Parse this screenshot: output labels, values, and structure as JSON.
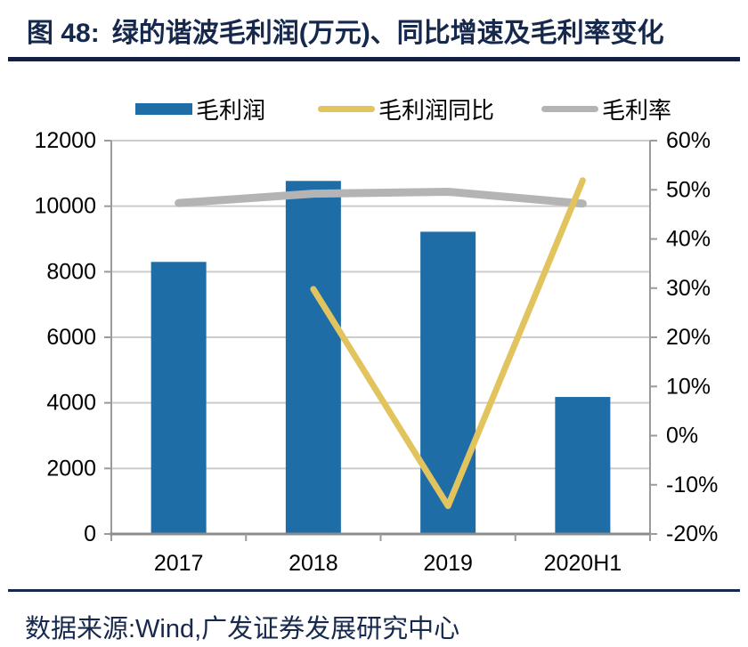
{
  "header": {
    "figure_label": "图 48:",
    "title": "绿的谐波毛利润(万元)、同比增速及毛利率变化"
  },
  "legend": {
    "items": [
      {
        "label": "毛利润",
        "marker": "bar",
        "color": "#1F6DA6"
      },
      {
        "label": "毛利润同比",
        "marker": "line",
        "color": "#E2C45F"
      },
      {
        "label": "毛利率",
        "marker": "line",
        "color": "#B4B4B4"
      }
    ]
  },
  "chart_data": {
    "type": "combo",
    "categories": [
      "2017",
      "2018",
      "2019",
      "2020H1"
    ],
    "series": [
      {
        "name": "毛利润",
        "type": "bar",
        "axis": "left",
        "color": "#1F6DA6",
        "values": [
          8300,
          10770,
          9220,
          4180
        ]
      },
      {
        "name": "毛利润同比",
        "type": "line",
        "axis": "right",
        "color": "#E2C45F",
        "values": [
          null,
          29.8,
          -14.3,
          51.9
        ]
      },
      {
        "name": "毛利率",
        "type": "line",
        "axis": "right",
        "color": "#B4B4B4",
        "values": [
          47.3,
          49.2,
          49.6,
          47.2
        ]
      }
    ],
    "left_axis": {
      "min": 0,
      "max": 12000,
      "tick_step": 2000,
      "tick_labels": [
        "0",
        "2000",
        "4000",
        "6000",
        "8000",
        "10000",
        "12000"
      ]
    },
    "right_axis": {
      "min": -20,
      "max": 60,
      "tick_step": 10,
      "tick_labels": [
        "-20%",
        "-10%",
        "0%",
        "10%",
        "20%",
        "30%",
        "40%",
        "50%",
        "60%"
      ]
    },
    "grid": "horizontal",
    "legend_position": "top"
  },
  "footer": {
    "source": "数据来源:Wind,广发证券发展研究中心"
  },
  "colors": {
    "title": "#16294C",
    "grid": "#CCCCCC",
    "axis": "#9B9B9B",
    "axis_bottom": "#8C8C8C",
    "text": "#000000"
  }
}
